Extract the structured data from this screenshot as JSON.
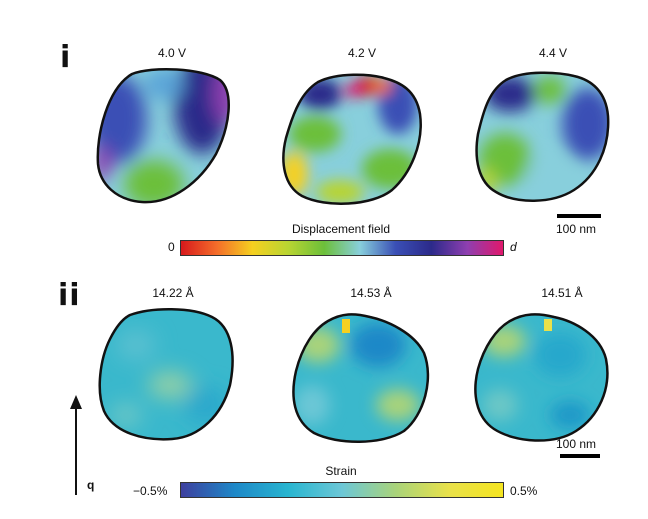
{
  "row1": {
    "label": "i",
    "captions": [
      "4.0 V",
      "4.2 V",
      "4.4 V"
    ],
    "colorbar_title": "Displacement field",
    "colorbar_min": "0",
    "colorbar_max": "d",
    "scalebar": "100 nm"
  },
  "row2": {
    "label": "ii",
    "captions": [
      "14.22 Å",
      "14.53 Å",
      "14.51 Å"
    ],
    "colorbar_title": "Strain",
    "colorbar_min": "−0.5%",
    "colorbar_max": "0.5%",
    "scalebar": "100 nm"
  },
  "axis": {
    "label": "q"
  },
  "colors": {
    "displacement_gradient": [
      "#d7191c",
      "#f46d2a",
      "#f5d020",
      "#b8d432",
      "#6cbf3a",
      "#88cfdc",
      "#3a4fb5",
      "#2c2a8a",
      "#8e3fb0",
      "#e0186c"
    ],
    "strain_gradient": [
      "#3d3f9e",
      "#1e88c8",
      "#28b5d0",
      "#6cc7d6",
      "#a9d37a",
      "#e9e14a",
      "#f5e520"
    ]
  }
}
